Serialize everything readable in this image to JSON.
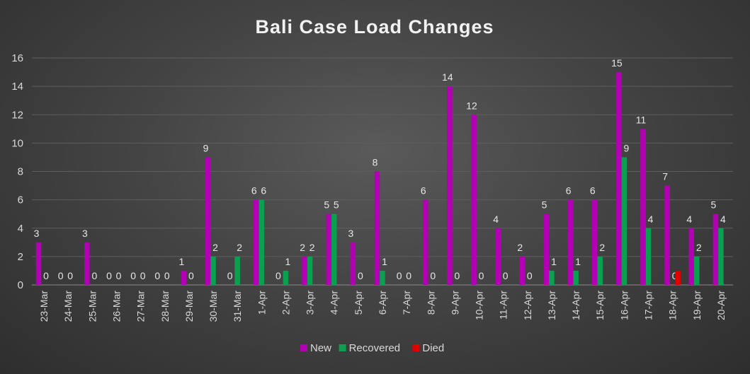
{
  "chart_data": {
    "type": "bar",
    "title": "Bali Case Load Changes",
    "categories": [
      "23-Mar",
      "24-Mar",
      "25-Mar",
      "26-Mar",
      "27-Mar",
      "28-Mar",
      "29-Mar",
      "30-Mar",
      "31-Mar",
      "1-Apr",
      "2-Apr",
      "3-Apr",
      "4-Apr",
      "5-Apr",
      "6-Apr",
      "7-Apr",
      "8-Apr",
      "9-Apr",
      "10-Apr",
      "11-Apr",
      "12-Apr",
      "13-Apr",
      "14-Apr",
      "15-Apr",
      "16-Apr",
      "17-Apr",
      "18-Apr",
      "19-Apr",
      "20-Apr"
    ],
    "series": [
      {
        "name": "New",
        "color": "#b400b4",
        "values": [
          3,
          0,
          3,
          0,
          0,
          0,
          1,
          9,
          0,
          6,
          0,
          2,
          5,
          3,
          8,
          0,
          6,
          14,
          12,
          4,
          2,
          5,
          6,
          6,
          15,
          11,
          7,
          4,
          5
        ]
      },
      {
        "name": "Recovered",
        "color": "#0aa050",
        "values": [
          0,
          0,
          0,
          0,
          0,
          0,
          0,
          2,
          2,
          6,
          1,
          2,
          5,
          0,
          1,
          0,
          0,
          0,
          0,
          0,
          0,
          1,
          1,
          2,
          9,
          4,
          0,
          2,
          4
        ]
      },
      {
        "name": "Died",
        "color": "#e00000",
        "values": [
          null,
          null,
          null,
          null,
          null,
          null,
          null,
          null,
          null,
          null,
          null,
          null,
          null,
          null,
          null,
          null,
          null,
          null,
          null,
          null,
          null,
          null,
          null,
          null,
          null,
          null,
          1,
          null,
          null
        ]
      }
    ],
    "yticks": [
      0,
      2,
      4,
      6,
      8,
      10,
      12,
      14,
      16
    ],
    "ylim": [
      0,
      16
    ],
    "grid": true,
    "legend": "bottom"
  }
}
